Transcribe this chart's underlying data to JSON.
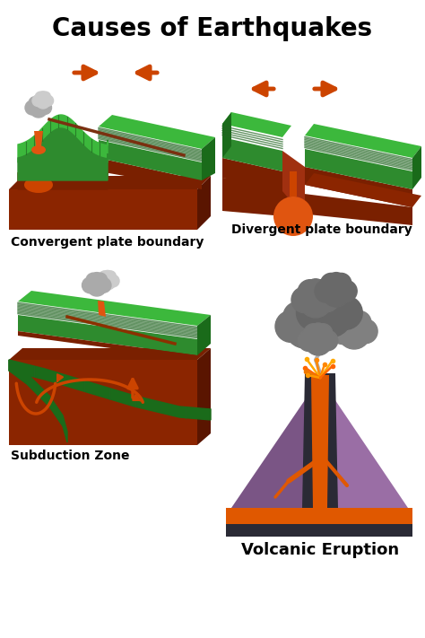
{
  "title": "Causes of Earthquakes",
  "title_fontsize": 20,
  "title_fontweight": "bold",
  "bg_color": "#ffffff",
  "labels": {
    "convergent": "Convergent plate boundary",
    "divergent": "Divergent plate boundary",
    "subduction": "Subduction Zone",
    "volcanic": "Volcanic Eruption"
  },
  "label_fontsize": 10,
  "label_fontweight": "bold",
  "colors": {
    "green_top": "#2e8b2e",
    "green_mid": "#3cb83c",
    "green_dark": "#1a6b1a",
    "green_stripe": "#226622",
    "brown_top": "#8b2500",
    "brown_mid": "#7a2000",
    "brown_light": "#a03010",
    "brown_dark": "#5a1500",
    "orange": "#cc4400",
    "orange_bright": "#e05510",
    "orange_lava": "#e06820",
    "gray_dark": "#888888",
    "gray_mid": "#aaaaaa",
    "gray_light": "#cccccc",
    "arrow_orange": "#cc4400",
    "purple": "#7a5585",
    "purple_light": "#9a6ea5",
    "purple_dark": "#5a3a65",
    "dark_gray": "#2a2a35",
    "lava_color": "#e05800"
  }
}
